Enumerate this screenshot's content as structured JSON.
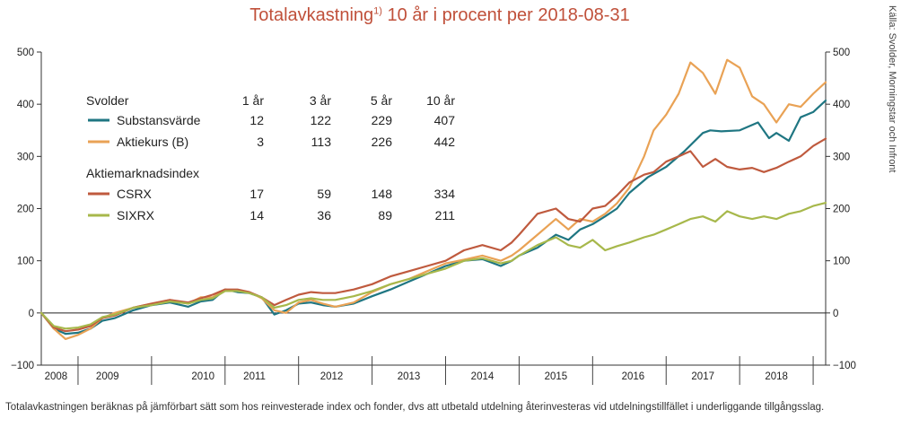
{
  "title": "Totalavkastning",
  "title_sup": "1)",
  "title_rest": " 10 år i procent per 2018-08-31",
  "source": "Källa: Svolder, Morningstar och Infront",
  "footnote": "Totalavkastningen beräknas på jämförbart sätt som hos reinvesterade index och fonder, dvs att utbetald utdelning återinvesteras vid utdelningstillfället i underliggande tillgångsslag.",
  "chart_data": {
    "type": "line",
    "ylim": [
      -100,
      500
    ],
    "xlim": [
      2008.0,
      2018.67
    ],
    "yticks": [
      -100,
      0,
      100,
      200,
      300,
      400,
      500
    ],
    "ytick_labels": [
      "−100",
      "0",
      "100",
      "200",
      "300",
      "400",
      "500"
    ],
    "xticks": [
      {
        "label": "2008",
        "pos": 2008.2
      },
      {
        "label": "2009",
        "pos": 2008.9
      },
      {
        "label": "2010",
        "pos": 2010.2
      },
      {
        "label": "2011",
        "pos": 2010.9
      },
      {
        "label": "2012",
        "pos": 2011.95
      },
      {
        "label": "2013",
        "pos": 2013.0
      },
      {
        "label": "2014",
        "pos": 2014.0
      },
      {
        "label": "2015",
        "pos": 2015.0
      },
      {
        "label": "2016",
        "pos": 2016.05
      },
      {
        "label": "2017",
        "pos": 2017.0
      },
      {
        "label": "2018",
        "pos": 2018.0
      }
    ],
    "year_dividers": [
      2008.5,
      2009.5,
      2010.5,
      2011.5,
      2012.5,
      2013.5,
      2014.5,
      2015.5,
      2016.5,
      2017.5,
      2018.5
    ],
    "series": [
      {
        "name": "Substansvärde",
        "color": "#1f7682",
        "x": [
          2008.0,
          2008.17,
          2008.33,
          2008.5,
          2008.67,
          2008.83,
          2009.0,
          2009.25,
          2009.5,
          2009.75,
          2010.0,
          2010.17,
          2010.33,
          2010.5,
          2010.67,
          2010.83,
          2011.0,
          2011.17,
          2011.33,
          2011.5,
          2011.67,
          2011.83,
          2012.0,
          2012.25,
          2012.5,
          2012.75,
          2013.0,
          2013.25,
          2013.5,
          2013.75,
          2014.0,
          2014.25,
          2014.4,
          2014.5,
          2014.75,
          2015.0,
          2015.17,
          2015.33,
          2015.5,
          2015.67,
          2015.83,
          2016.0,
          2016.25,
          2016.5,
          2016.75,
          2017.0,
          2017.1,
          2017.25,
          2017.5,
          2017.75,
          2017.9,
          2018.0,
          2018.17,
          2018.33,
          2018.5,
          2018.67
        ],
        "y": [
          0,
          -30,
          -40,
          -38,
          -30,
          -15,
          -10,
          5,
          15,
          20,
          12,
          22,
          25,
          45,
          40,
          38,
          30,
          -3,
          5,
          18,
          20,
          15,
          12,
          18,
          32,
          45,
          60,
          75,
          90,
          100,
          103,
          90,
          100,
          110,
          125,
          150,
          140,
          160,
          170,
          185,
          200,
          230,
          260,
          280,
          310,
          345,
          350,
          348,
          350,
          365,
          335,
          345,
          330,
          375,
          385,
          407
        ]
      },
      {
        "name": "Aktiekurs (B)",
        "color": "#e9a255",
        "x": [
          2008.0,
          2008.17,
          2008.33,
          2008.5,
          2008.67,
          2008.83,
          2009.0,
          2009.25,
          2009.5,
          2009.75,
          2010.0,
          2010.17,
          2010.33,
          2010.5,
          2010.67,
          2010.83,
          2011.0,
          2011.17,
          2011.33,
          2011.5,
          2011.67,
          2011.83,
          2012.0,
          2012.25,
          2012.5,
          2012.75,
          2013.0,
          2013.25,
          2013.5,
          2013.75,
          2014.0,
          2014.25,
          2014.4,
          2014.5,
          2014.75,
          2015.0,
          2015.17,
          2015.33,
          2015.5,
          2015.67,
          2015.83,
          2016.0,
          2016.2,
          2016.33,
          2016.5,
          2016.67,
          2016.83,
          2017.0,
          2017.17,
          2017.33,
          2017.5,
          2017.67,
          2017.83,
          2018.0,
          2018.17,
          2018.33,
          2018.5,
          2018.67
        ],
        "y": [
          0,
          -30,
          -50,
          -42,
          -30,
          -10,
          0,
          10,
          18,
          25,
          18,
          30,
          30,
          45,
          42,
          40,
          28,
          5,
          0,
          20,
          25,
          18,
          12,
          20,
          40,
          55,
          65,
          80,
          95,
          102,
          110,
          100,
          110,
          120,
          150,
          180,
          160,
          180,
          175,
          190,
          210,
          240,
          300,
          350,
          380,
          420,
          480,
          460,
          420,
          485,
          470,
          415,
          400,
          365,
          400,
          395,
          420,
          442
        ]
      },
      {
        "name": "CSRX",
        "color": "#bf5a3e",
        "x": [
          2008.0,
          2008.17,
          2008.33,
          2008.5,
          2008.67,
          2008.83,
          2009.0,
          2009.25,
          2009.5,
          2009.75,
          2010.0,
          2010.17,
          2010.33,
          2010.5,
          2010.67,
          2010.83,
          2011.0,
          2011.17,
          2011.33,
          2011.5,
          2011.67,
          2011.83,
          2012.0,
          2012.25,
          2012.5,
          2012.75,
          2013.0,
          2013.25,
          2013.5,
          2013.75,
          2014.0,
          2014.25,
          2014.4,
          2014.5,
          2014.75,
          2015.0,
          2015.17,
          2015.33,
          2015.5,
          2015.67,
          2015.83,
          2016.0,
          2016.2,
          2016.33,
          2016.5,
          2016.67,
          2016.83,
          2017.0,
          2017.17,
          2017.33,
          2017.5,
          2017.67,
          2017.83,
          2018.0,
          2018.17,
          2018.33,
          2018.5,
          2018.67
        ],
        "y": [
          0,
          -28,
          -35,
          -32,
          -25,
          -10,
          -5,
          10,
          18,
          25,
          20,
          28,
          35,
          45,
          45,
          40,
          30,
          15,
          25,
          35,
          40,
          38,
          38,
          45,
          55,
          70,
          80,
          90,
          100,
          120,
          130,
          120,
          135,
          150,
          190,
          200,
          180,
          175,
          200,
          205,
          225,
          250,
          265,
          270,
          290,
          300,
          310,
          280,
          295,
          280,
          275,
          278,
          270,
          278,
          290,
          300,
          320,
          334
        ]
      },
      {
        "name": "SIXRX",
        "color": "#a7b84b",
        "x": [
          2008.0,
          2008.17,
          2008.33,
          2008.5,
          2008.67,
          2008.83,
          2009.0,
          2009.25,
          2009.5,
          2009.75,
          2010.0,
          2010.17,
          2010.33,
          2010.5,
          2010.67,
          2010.83,
          2011.0,
          2011.17,
          2011.33,
          2011.5,
          2011.67,
          2011.83,
          2012.0,
          2012.25,
          2012.5,
          2012.75,
          2013.0,
          2013.25,
          2013.5,
          2013.75,
          2014.0,
          2014.25,
          2014.4,
          2014.5,
          2014.75,
          2015.0,
          2015.17,
          2015.33,
          2015.5,
          2015.67,
          2015.83,
          2016.0,
          2016.2,
          2016.33,
          2016.5,
          2016.67,
          2016.83,
          2017.0,
          2017.17,
          2017.33,
          2017.5,
          2017.67,
          2017.83,
          2018.0,
          2018.17,
          2018.33,
          2018.5,
          2018.67
        ],
        "y": [
          0,
          -25,
          -30,
          -28,
          -22,
          -8,
          -3,
          10,
          15,
          22,
          18,
          25,
          28,
          42,
          42,
          38,
          30,
          10,
          15,
          25,
          28,
          25,
          25,
          32,
          42,
          55,
          65,
          75,
          85,
          100,
          105,
          95,
          100,
          110,
          130,
          145,
          130,
          125,
          140,
          120,
          128,
          135,
          145,
          150,
          160,
          170,
          180,
          185,
          175,
          195,
          185,
          180,
          185,
          180,
          190,
          195,
          205,
          211
        ]
      }
    ],
    "legend": {
      "group1": "Svolder",
      "group2": "Aktiemarknadsindex",
      "columns": [
        "1 år",
        "3 år",
        "5 år",
        "10 år"
      ],
      "rows": [
        {
          "name": "Substansvärde",
          "color": "#1f7682",
          "values": [
            "12",
            "122",
            "229",
            "407"
          ]
        },
        {
          "name": "Aktiekurs (B)",
          "color": "#e9a255",
          "values": [
            "3",
            "113",
            "226",
            "442"
          ]
        },
        {
          "name": "CSRX",
          "color": "#bf5a3e",
          "values": [
            "17",
            "59",
            "148",
            "334"
          ]
        },
        {
          "name": "SIXRX",
          "color": "#a7b84b",
          "values": [
            "14",
            "36",
            "89",
            "211"
          ]
        }
      ]
    }
  }
}
